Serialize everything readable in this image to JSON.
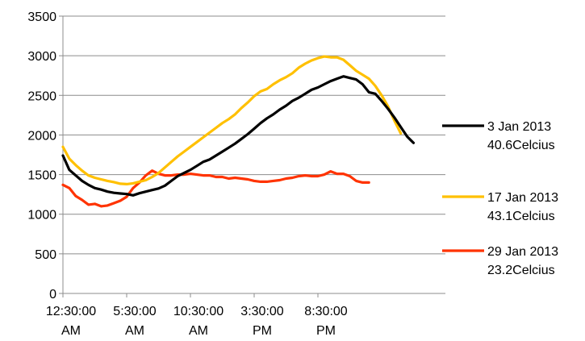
{
  "chart_data": {
    "type": "line",
    "title": "",
    "xlabel": "",
    "ylabel": "",
    "ylim": [
      0,
      3500
    ],
    "yticks": [
      0,
      500,
      1000,
      1500,
      2000,
      2500,
      3000,
      3500
    ],
    "grid": true,
    "legend_position": "right",
    "x_tick_labels": [
      {
        "index": 0,
        "line1": "12:30:00",
        "line2": "AM"
      },
      {
        "index": 10,
        "line1": "5:30:00",
        "line2": "AM"
      },
      {
        "index": 20,
        "line1": "10:30:00",
        "line2": "AM"
      },
      {
        "index": 30,
        "line1": "3:30:00",
        "line2": "PM"
      },
      {
        "index": 40,
        "line1": "8:30:00",
        "line2": "PM"
      }
    ],
    "series": [
      {
        "line1": "3 Jan 2013",
        "line2": "40.6Celcius",
        "color": "#000000",
        "values": [
          1740,
          1560,
          1490,
          1420,
          1370,
          1330,
          1310,
          1285,
          1270,
          1262,
          1255,
          1238,
          1265,
          1285,
          1305,
          1325,
          1360,
          1420,
          1480,
          1520,
          1560,
          1610,
          1660,
          1690,
          1740,
          1790,
          1840,
          1890,
          1950,
          2010,
          2080,
          2150,
          2210,
          2260,
          2320,
          2370,
          2430,
          2470,
          2520,
          2570,
          2600,
          2640,
          2680,
          2710,
          2740,
          2720,
          2700,
          2640,
          2540,
          2520,
          2430,
          2330,
          2220,
          2100,
          1980,
          1900
        ]
      },
      {
        "line1": "17 Jan 2013",
        "line2": "43.1Celcius",
        "color": "#FFC000",
        "values": [
          1850,
          1700,
          1620,
          1550,
          1490,
          1460,
          1440,
          1420,
          1405,
          1385,
          1380,
          1390,
          1410,
          1430,
          1470,
          1520,
          1590,
          1660,
          1730,
          1790,
          1850,
          1910,
          1970,
          2030,
          2090,
          2150,
          2200,
          2260,
          2340,
          2410,
          2490,
          2550,
          2580,
          2640,
          2690,
          2730,
          2780,
          2850,
          2900,
          2940,
          2970,
          2990,
          2980,
          2980,
          2950,
          2880,
          2810,
          2760,
          2710,
          2620,
          2500,
          2360,
          2180,
          2020
        ]
      },
      {
        "line1": "29 Jan 2013",
        "line2": "23.2Celcius",
        "color": "#FF3300",
        "values": [
          1370,
          1330,
          1230,
          1180,
          1120,
          1130,
          1100,
          1110,
          1140,
          1170,
          1220,
          1330,
          1400,
          1490,
          1550,
          1510,
          1490,
          1490,
          1500,
          1500,
          1510,
          1500,
          1490,
          1490,
          1470,
          1470,
          1450,
          1460,
          1450,
          1440,
          1420,
          1410,
          1410,
          1420,
          1430,
          1450,
          1460,
          1480,
          1490,
          1480,
          1480,
          1500,
          1540,
          1510,
          1510,
          1480,
          1420,
          1400,
          1400
        ]
      }
    ]
  }
}
